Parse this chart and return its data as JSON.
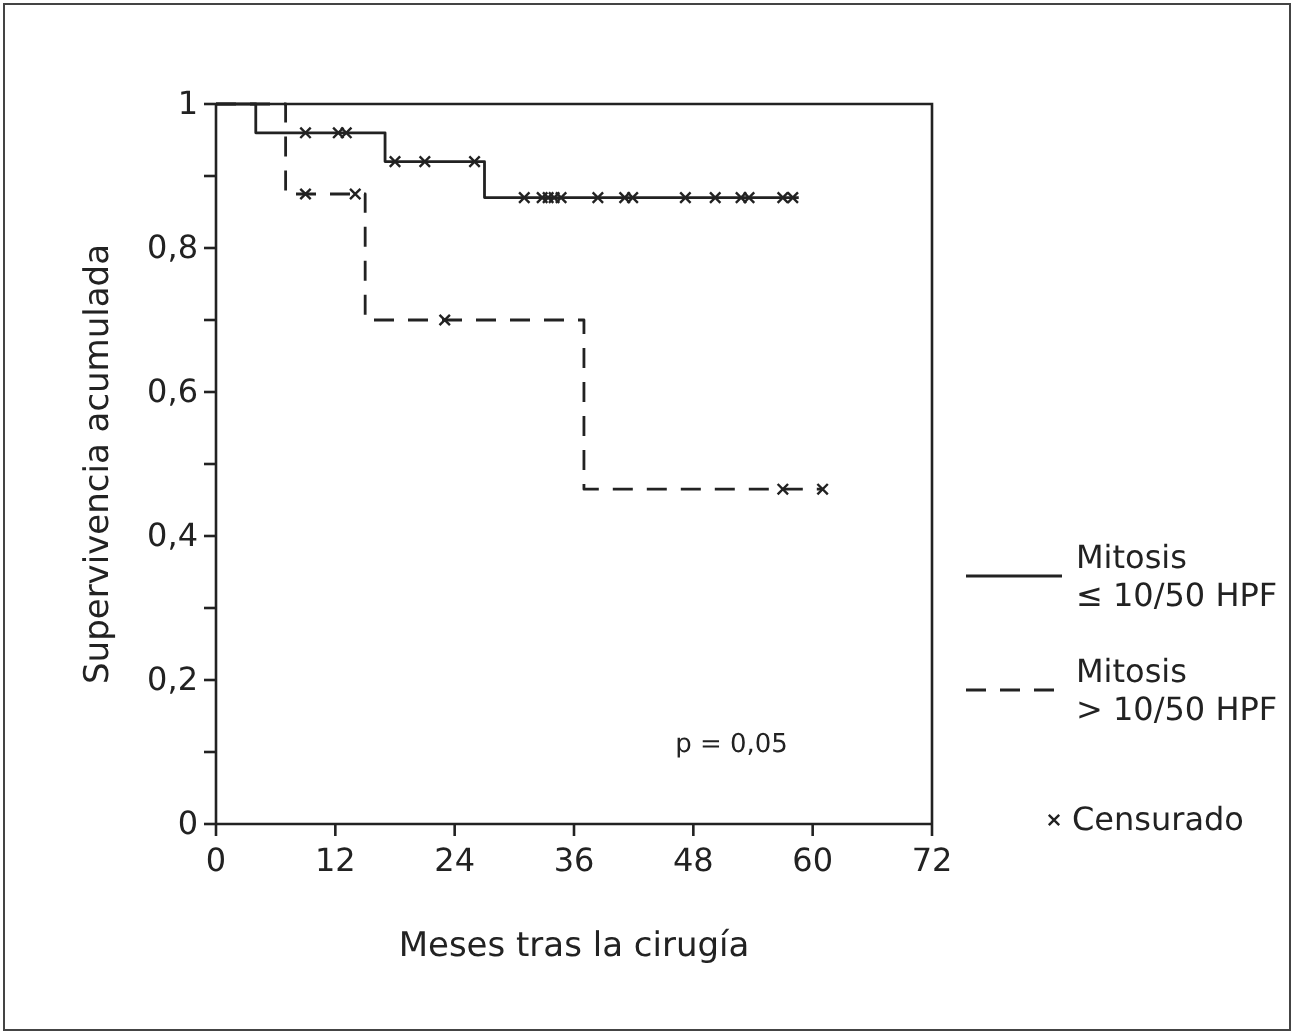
{
  "chart_data": {
    "type": "step",
    "xlabel": "Meses tras la cirugía",
    "ylabel": "Supervivencia acumulada",
    "xlim": [
      0,
      72
    ],
    "xticks": [
      0,
      12,
      24,
      36,
      48,
      60,
      72
    ],
    "ylim": [
      0,
      1
    ],
    "yticks": [
      {
        "value": 0,
        "label": "0"
      },
      {
        "value": 0.1,
        "label": null
      },
      {
        "value": 0.2,
        "label": "0,2"
      },
      {
        "value": 0.3,
        "label": null
      },
      {
        "value": 0.4,
        "label": "0,4"
      },
      {
        "value": 0.5,
        "label": null
      },
      {
        "value": 0.6,
        "label": "0,6"
      },
      {
        "value": 0.7,
        "label": null
      },
      {
        "value": 0.8,
        "label": "0,8"
      },
      {
        "value": 0.9,
        "label": null
      },
      {
        "value": 1,
        "label": "1"
      }
    ],
    "grid": false,
    "legend": "right",
    "annotations": [
      "p = 0,05"
    ],
    "series": [
      {
        "name": "Mitosis ≤ 10/50 HPF",
        "color": "#222222",
        "line_style": "solid",
        "marker": "none",
        "x": [
          0,
          4,
          17,
          27,
          58.6
        ],
        "values": [
          1,
          0.96,
          0.92,
          0.87,
          0.87
        ]
      },
      {
        "name": "Mitosis > 10/50 HPF",
        "color": "#222222",
        "line_style": "dashed",
        "marker": "none",
        "x": [
          0,
          7,
          15,
          37,
          61
        ],
        "values": [
          1,
          0.875,
          0.7,
          0.465,
          0.465
        ]
      },
      {
        "name": "Censurado",
        "type": "scatter",
        "color": "#222222",
        "marker": "cross",
        "x": [
          9,
          12.3,
          13.1,
          18,
          21,
          26,
          31,
          32.8,
          33.4,
          34,
          34.7,
          38.4,
          41.1,
          41.9,
          47.2,
          50.2,
          52.8,
          53.6,
          57,
          58,
          9,
          14,
          23,
          57,
          61
        ],
        "values": [
          0.96,
          0.96,
          0.96,
          0.92,
          0.92,
          0.92,
          0.87,
          0.87,
          0.87,
          0.87,
          0.87,
          0.87,
          0.87,
          0.87,
          0.87,
          0.87,
          0.87,
          0.87,
          0.87,
          0.87,
          0.875,
          0.875,
          0.7,
          0.465,
          0.465
        ]
      }
    ]
  }
}
